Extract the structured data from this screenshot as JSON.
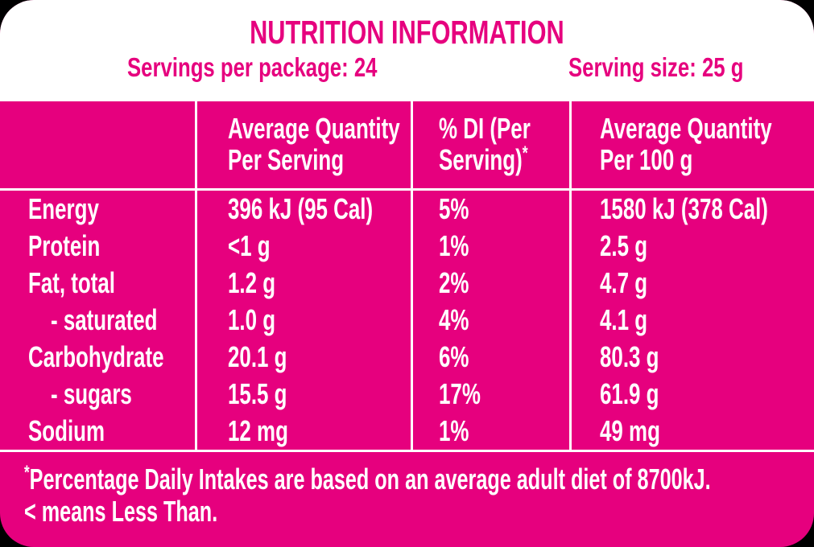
{
  "colors": {
    "pink": "#E6007E",
    "text_on_pink": "#FFFFFF",
    "background": "#000000"
  },
  "header": {
    "title": "NUTRITION INFORMATION",
    "servings_per_package": "Servings per package: 24",
    "serving_size": "Serving size: 25 g"
  },
  "table": {
    "columns": [
      {
        "line1": "",
        "line2": ""
      },
      {
        "line1": "Average Quantity",
        "line2": "Per Serving"
      },
      {
        "line1": "% DI (Per",
        "line2": "Serving)",
        "sup": "*"
      },
      {
        "line1": "Average Quantity",
        "line2": "Per 100 g"
      }
    ],
    "rows": [
      {
        "nutrient": "Energy",
        "per_serving": "396 kJ (95 Cal)",
        "di_per_serving": "5%",
        "per_100g": "1580 kJ (378 Cal)"
      },
      {
        "nutrient": "Protein",
        "per_serving": "<1 g",
        "di_per_serving": "1%",
        "per_100g": "2.5 g"
      },
      {
        "nutrient": "Fat, total",
        "per_serving": "1.2 g",
        "di_per_serving": "2%",
        "per_100g": "4.7 g"
      },
      {
        "nutrient": "- saturated",
        "per_serving": "1.0 g",
        "di_per_serving": "4%",
        "per_100g": "4.1 g"
      },
      {
        "nutrient": "Carbohydrate",
        "per_serving": "20.1 g",
        "di_per_serving": "6%",
        "per_100g": "80.3 g"
      },
      {
        "nutrient": "- sugars",
        "per_serving": "15.5 g",
        "di_per_serving": "17%",
        "per_100g": "61.9 g"
      },
      {
        "nutrient": "Sodium",
        "per_serving": "12 mg",
        "di_per_serving": "1%",
        "per_100g": "49 mg"
      }
    ]
  },
  "footnote": {
    "asterisk": "*",
    "line1": "Percentage Daily Intakes are based on an average adult diet of 8700kJ.",
    "line2": "< means Less Than."
  }
}
